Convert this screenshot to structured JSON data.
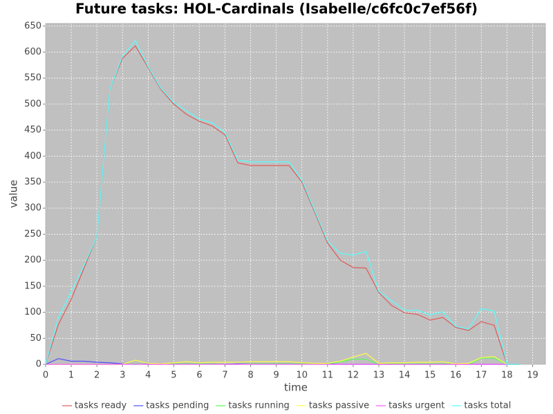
{
  "chart_data": {
    "type": "line",
    "title": "Future tasks: HOL-Cardinals (Isabelle/c6fc0c7ef56f)",
    "x_label": "time",
    "y_label": "value",
    "x": [
      0,
      0.5,
      1,
      1.5,
      2,
      2.5,
      3,
      3.5,
      4,
      4.5,
      5,
      5.5,
      6,
      6.5,
      7,
      7.5,
      8,
      8.5,
      9,
      9.5,
      10,
      10.5,
      11,
      11.5,
      12,
      12.5,
      13,
      13.5,
      14,
      14.5,
      15,
      15.5,
      16,
      16.5,
      17,
      17.5,
      18,
      18.5
    ],
    "series": [
      {
        "name": "tasks ready",
        "color": "#e05a5a",
        "values": [
          0,
          77,
          125,
          185,
          245,
          527,
          588,
          612,
          570,
          528,
          500,
          480,
          467,
          458,
          441,
          387,
          382,
          382,
          382,
          382,
          350,
          292,
          233,
          200,
          186,
          185,
          138,
          113,
          99,
          96,
          85,
          90,
          71,
          65,
          82,
          75,
          0,
          0
        ]
      },
      {
        "name": "tasks pending",
        "color": "#4b4bff",
        "values": [
          0,
          11,
          6,
          6,
          4,
          3,
          1,
          0,
          1,
          0,
          1,
          1,
          1,
          1,
          0,
          1,
          1,
          1,
          1,
          1,
          1,
          1,
          1,
          0,
          0,
          0,
          0,
          0,
          0,
          0,
          0,
          0,
          0,
          0,
          0,
          0,
          0,
          0
        ]
      },
      {
        "name": "tasks running",
        "color": "#55ff55",
        "values": [
          0,
          0,
          0,
          0,
          0,
          0,
          0,
          1,
          0,
          0,
          1,
          1,
          1,
          1,
          0,
          0,
          1,
          1,
          1,
          1,
          1,
          1,
          1,
          5,
          10,
          10,
          0,
          1,
          1,
          1,
          1,
          1,
          1,
          0,
          12,
          12,
          0,
          0
        ]
      },
      {
        "name": "tasks passive",
        "color": "#ffff44",
        "values": [
          0,
          0,
          0,
          0,
          0,
          0,
          0,
          8,
          2,
          1,
          3,
          5,
          3,
          4,
          4,
          4,
          5,
          5,
          5,
          5,
          3,
          2,
          2,
          6,
          14,
          21,
          2,
          3,
          3,
          4,
          4,
          5,
          1,
          2,
          13,
          15,
          0,
          0
        ]
      },
      {
        "name": "tasks urgent",
        "color": "#ff55ff",
        "values": [
          0,
          0,
          0,
          0,
          0,
          0,
          0,
          0,
          0,
          0,
          0,
          0,
          0,
          0,
          0,
          0,
          0,
          0,
          0,
          0,
          0,
          0,
          0,
          0,
          0,
          0,
          0,
          0,
          0,
          0,
          0,
          0,
          0,
          0,
          0,
          0,
          0,
          0
        ]
      },
      {
        "name": "tasks total",
        "color": "#55ffff",
        "values": [
          0,
          90,
          140,
          190,
          245,
          527,
          592,
          622,
          572,
          530,
          503,
          487,
          471,
          464,
          445,
          392,
          389,
          389,
          389,
          389,
          354,
          295,
          237,
          213,
          210,
          217,
          140,
          122,
          104,
          104,
          95,
          101,
          73,
          68,
          107,
          102,
          0,
          0
        ]
      }
    ],
    "xlim": [
      0,
      19.5
    ],
    "xticks": [
      0,
      1,
      2,
      3,
      4,
      5,
      6,
      7,
      8,
      9,
      10,
      11,
      12,
      13,
      14,
      15,
      16,
      17,
      18,
      19
    ],
    "ylim": [
      0,
      655
    ],
    "yticks": [
      0,
      50,
      100,
      150,
      200,
      250,
      300,
      350,
      400,
      450,
      500,
      550,
      600,
      650
    ],
    "grid": true,
    "legend": "bottom"
  }
}
